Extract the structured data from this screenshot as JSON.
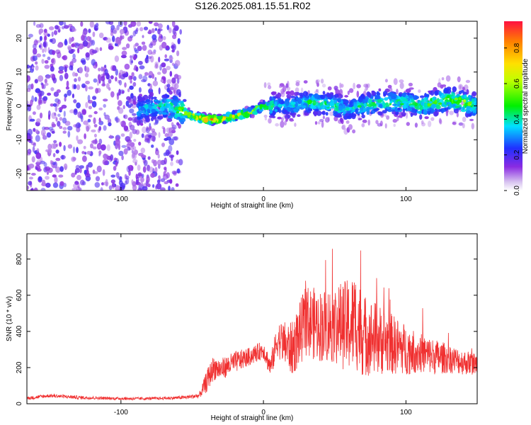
{
  "title": "S126.2025.081.15.51.R02",
  "colors": {
    "snr_line": "#f03030",
    "frame": "#000000"
  },
  "chart_data": [
    {
      "type": "heatmap",
      "title": "S126.2025.081.15.51.R02",
      "xlabel": "Height of straight line (km)",
      "ylabel": "Frequency (Hz)",
      "xlim": [
        -166,
        150
      ],
      "ylim": [
        -25,
        25
      ],
      "x_ticks": [
        -100,
        0,
        100
      ],
      "x_tick_labels": [
        "-100",
        "0",
        "100"
      ],
      "y_ticks": [
        -20,
        -10,
        0,
        10,
        20
      ],
      "y_tick_labels": [
        "-20",
        "-10",
        "0",
        "10",
        "20"
      ],
      "colorbar": {
        "label": "Normalized spectral amplitude",
        "range": [
          0,
          0.95
        ],
        "ticks": [
          0.0,
          0.2,
          0.4,
          0.6,
          0.8
        ],
        "tick_labels": [
          "0.0",
          "0.2",
          "0.4",
          "0.6",
          "0.8"
        ],
        "colormap": "rainbow (purple-blue-cyan-green-yellow-red)"
      },
      "ridge": {
        "x": [
          -85,
          -70,
          -60,
          -50,
          -40,
          -30,
          -20,
          -10,
          0,
          10,
          20,
          30,
          40,
          50,
          60,
          70,
          80,
          90,
          100,
          110,
          120,
          130,
          140,
          150
        ],
        "freq": [
          -1,
          0,
          -1,
          -3,
          -4,
          -4,
          -3,
          -2,
          0,
          0,
          0,
          1,
          1,
          0,
          -1,
          0,
          1,
          1,
          1,
          0,
          1,
          2,
          1,
          0
        ],
        "amplitude": [
          0.3,
          0.4,
          0.5,
          0.7,
          0.9,
          0.9,
          0.8,
          0.7,
          0.6,
          0.3,
          0.3,
          0.4,
          0.4,
          0.4,
          0.3,
          0.4,
          0.4,
          0.4,
          0.4,
          0.4,
          0.5,
          0.5,
          0.6,
          0.4
        ]
      }
    },
    {
      "type": "line",
      "xlabel": "Height of straight line (km)",
      "ylabel": "SNR (10 * v/v)",
      "xlim": [
        -166,
        150
      ],
      "ylim": [
        0,
        940
      ],
      "x_ticks": [
        -100,
        0,
        100
      ],
      "x_tick_labels": [
        "-100",
        "0",
        "100"
      ],
      "y_ticks": [
        0,
        200,
        400,
        600,
        800
      ],
      "y_tick_labels": [
        "0",
        "200",
        "400",
        "600",
        "800"
      ],
      "series": [
        {
          "color": "#f03030",
          "x": [
            -166,
            -150,
            -130,
            -110,
            -90,
            -70,
            -55,
            -45,
            -40,
            -35,
            -30,
            -20,
            -10,
            0,
            5,
            10,
            20,
            30,
            40,
            50,
            60,
            65,
            70,
            80,
            90,
            100,
            110,
            120,
            130,
            140,
            150
          ],
          "y": [
            30,
            45,
            35,
            30,
            28,
            30,
            35,
            45,
            120,
            200,
            190,
            230,
            260,
            300,
            200,
            360,
            300,
            460,
            430,
            440,
            430,
            460,
            380,
            360,
            330,
            300,
            280,
            260,
            250,
            230,
            220
          ],
          "noise_amplitude": [
            10,
            10,
            10,
            8,
            8,
            8,
            10,
            15,
            60,
            70,
            60,
            60,
            50,
            50,
            60,
            100,
            150,
            200,
            200,
            220,
            260,
            280,
            230,
            200,
            170,
            140,
            110,
            100,
            80,
            70,
            60
          ]
        }
      ]
    }
  ]
}
